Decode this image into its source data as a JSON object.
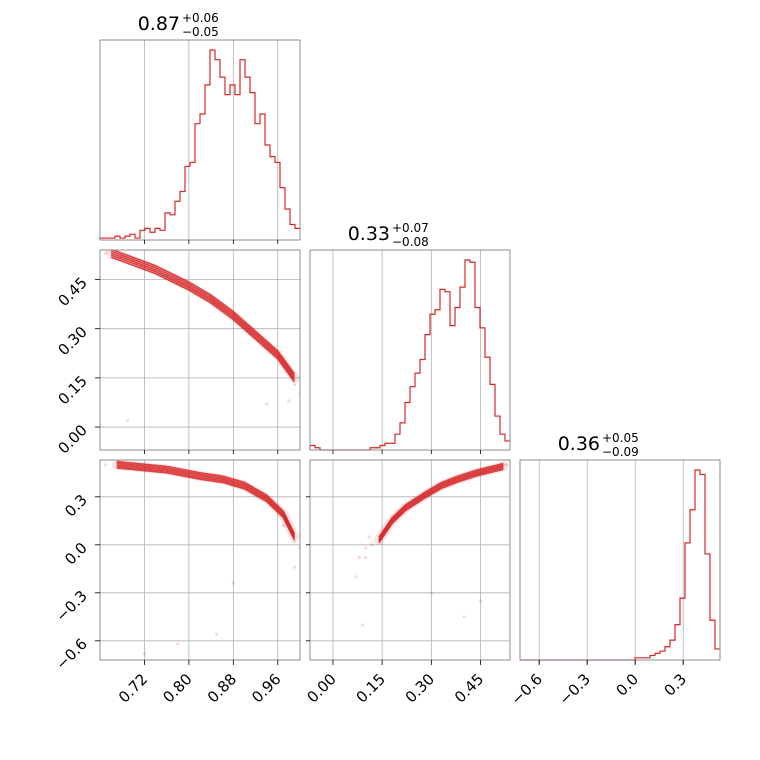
{
  "chart_data": {
    "type": "corner",
    "color": "#d62728",
    "parameters": [
      {
        "id": "p0",
        "median": "0.87",
        "plus": "+0.06",
        "minus": "−0.05",
        "range": [
          0.64,
          1.0
        ],
        "ticks": [
          0.72,
          0.8,
          0.88,
          0.96
        ],
        "ticklabels": [
          "0.72",
          "0.80",
          "0.88",
          "0.96"
        ]
      },
      {
        "id": "p1",
        "median": "0.33",
        "plus": "+0.07",
        "minus": "−0.08",
        "range": [
          -0.07,
          0.54
        ],
        "ticks": [
          0.0,
          0.15,
          0.3,
          0.45
        ],
        "ticklabels": [
          "0.00",
          "0.15",
          "0.30",
          "0.45"
        ]
      },
      {
        "id": "p2",
        "median": "0.36",
        "plus": "+0.05",
        "minus": "−0.09",
        "range": [
          -0.72,
          0.53
        ],
        "ticks": [
          -0.6,
          -0.3,
          0.0,
          0.3
        ],
        "ticklabels": [
          "−0.6",
          "−0.3",
          "0.0",
          "0.3"
        ]
      }
    ],
    "histograms": [
      {
        "param": 0,
        "counts": [
          1,
          1,
          1,
          2,
          1,
          2,
          3,
          1,
          5,
          6,
          4,
          6,
          5,
          14,
          13,
          20,
          25,
          38,
          40,
          60,
          65,
          80,
          98,
          93,
          84,
          75,
          80,
          75,
          93,
          84,
          76,
          60,
          65,
          49,
          43,
          40,
          27,
          16,
          8,
          6
        ]
      },
      {
        "param": 1,
        "counts": [
          2,
          1,
          0,
          0,
          0,
          0,
          0,
          0,
          0,
          0,
          0,
          0,
          1,
          1,
          2,
          3,
          3,
          7,
          12,
          21,
          28,
          34,
          40,
          51,
          60,
          62,
          71,
          70,
          55,
          63,
          72,
          84,
          83,
          63,
          54,
          41,
          29,
          15,
          7,
          4
        ]
      },
      {
        "param": 2,
        "counts": [
          0,
          0,
          0,
          0,
          0,
          0,
          0,
          0,
          0,
          0,
          0,
          0,
          0,
          0,
          0,
          0,
          0,
          0,
          0,
          0,
          0,
          0,
          0,
          1,
          1,
          1,
          2,
          3,
          4,
          6,
          9,
          16,
          28,
          53,
          68,
          86,
          84,
          48,
          18,
          5
        ]
      }
    ],
    "pairs": [
      {
        "x": 0,
        "y": 1,
        "curve": [
          [
            0.66,
            0.53
          ],
          [
            0.74,
            0.48
          ],
          [
            0.8,
            0.43
          ],
          [
            0.84,
            0.39
          ],
          [
            0.88,
            0.34
          ],
          [
            0.92,
            0.28
          ],
          [
            0.96,
            0.22
          ],
          [
            0.99,
            0.15
          ]
        ],
        "spread": 0.012,
        "scatter": [
          [
            0.65,
            0.53
          ],
          [
            0.68,
            0.52
          ],
          [
            0.7,
            0.51
          ],
          [
            0.72,
            0.49
          ],
          [
            0.74,
            0.48
          ],
          [
            0.76,
            0.46
          ],
          [
            0.99,
            0.13
          ],
          [
            1.0,
            0.1
          ],
          [
            0.98,
            0.08
          ],
          [
            0.94,
            0.07
          ],
          [
            0.69,
            0.02
          ],
          [
            0.94,
            0.26
          ],
          [
            0.98,
            0.17
          ]
        ]
      },
      {
        "x": 0,
        "y": 2,
        "curve": [
          [
            0.67,
            0.5
          ],
          [
            0.76,
            0.47
          ],
          [
            0.82,
            0.43
          ],
          [
            0.86,
            0.41
          ],
          [
            0.9,
            0.37
          ],
          [
            0.94,
            0.29
          ],
          [
            0.97,
            0.19
          ],
          [
            0.99,
            0.05
          ]
        ],
        "spread": 0.02,
        "scatter": [
          [
            0.65,
            0.5
          ],
          [
            0.68,
            0.5
          ],
          [
            0.71,
            0.49
          ],
          [
            0.73,
            0.48
          ],
          [
            0.99,
            0.02
          ],
          [
            1.0,
            -0.02
          ],
          [
            0.97,
            0.12
          ],
          [
            0.88,
            -0.24
          ],
          [
            0.85,
            -0.56
          ],
          [
            0.72,
            -0.68
          ],
          [
            0.78,
            -0.62
          ],
          [
            0.99,
            -0.14
          ]
        ]
      },
      {
        "x": 1,
        "y": 2,
        "curve": [
          [
            0.14,
            0.03
          ],
          [
            0.18,
            0.15
          ],
          [
            0.22,
            0.23
          ],
          [
            0.28,
            0.31
          ],
          [
            0.33,
            0.37
          ],
          [
            0.38,
            0.41
          ],
          [
            0.44,
            0.45
          ],
          [
            0.52,
            0.49
          ]
        ],
        "spread": 0.018,
        "scatter": [
          [
            0.12,
            0.0
          ],
          [
            0.1,
            -0.02
          ],
          [
            0.08,
            -0.08
          ],
          [
            0.07,
            -0.2
          ],
          [
            0.1,
            -0.08
          ],
          [
            0.53,
            0.5
          ],
          [
            0.52,
            0.5
          ],
          [
            0.09,
            -0.5
          ],
          [
            0.45,
            -0.35
          ],
          [
            0.3,
            -0.3
          ],
          [
            0.4,
            -0.45
          ],
          [
            0.11,
            0.05
          ]
        ]
      }
    ]
  }
}
